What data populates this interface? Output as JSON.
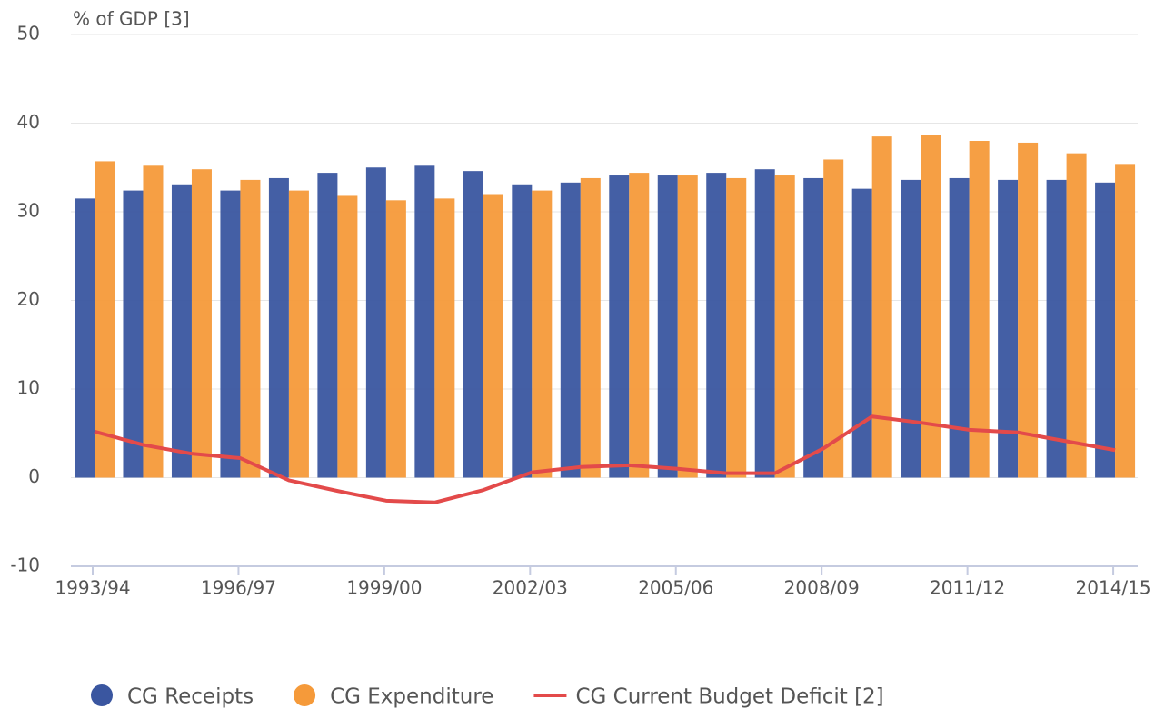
{
  "chart_data": {
    "type": "bar",
    "ylabel": "% of GDP [3]",
    "categories": [
      "1993/94",
      null,
      null,
      "1996/97",
      null,
      null,
      "1999/00",
      null,
      null,
      "2002/03",
      null,
      null,
      "2005/06",
      null,
      null,
      "2008/09",
      null,
      null,
      "2011/12",
      null,
      null,
      "2014/15"
    ],
    "series": [
      {
        "name": "CG Receipts",
        "type": "bar",
        "color": "#3a56a0",
        "values": [
          31.5,
          32.4,
          33.1,
          32.4,
          33.8,
          34.4,
          35.0,
          35.2,
          34.6,
          33.1,
          33.3,
          34.1,
          34.1,
          34.4,
          34.8,
          33.8,
          32.6,
          33.6,
          33.8,
          33.6,
          33.6,
          33.3
        ]
      },
      {
        "name": "CG Expenditure",
        "type": "bar",
        "color": "#f59a3a",
        "values": [
          35.7,
          35.2,
          34.8,
          33.6,
          32.4,
          31.8,
          31.3,
          31.5,
          32.0,
          32.4,
          33.8,
          34.4,
          34.1,
          33.8,
          34.1,
          35.9,
          38.5,
          38.7,
          38.0,
          37.8,
          36.6,
          35.4
        ]
      },
      {
        "name": "CG Current Budget Deficit [2]",
        "type": "line",
        "color": "#e34a4a",
        "values": [
          5.2,
          3.7,
          2.7,
          2.2,
          -0.3,
          -1.5,
          -2.6,
          -2.8,
          -1.4,
          0.6,
          1.2,
          1.4,
          1.0,
          0.5,
          0.5,
          3.3,
          6.9,
          6.2,
          5.4,
          5.1,
          4.1,
          3.1
        ]
      }
    ],
    "ylim": [
      -10,
      50
    ],
    "yticks": [
      -10,
      0,
      10,
      20,
      30,
      40,
      50
    ],
    "grid": true
  }
}
